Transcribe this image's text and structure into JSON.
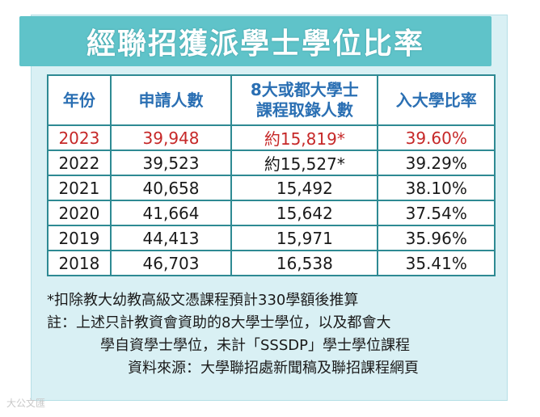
{
  "title": "經聯招獲派學士學位比率",
  "table": {
    "headers": [
      "年份",
      "申請人數",
      "8大或都大學士課程取錄人數",
      "入大學比率"
    ],
    "header_line1": "8大或都大學士",
    "header_line2": "課程取錄人數",
    "rows": [
      {
        "year": "2023",
        "applicants": "39,948",
        "admitted": "約15,819*",
        "rate": "39.60%"
      },
      {
        "year": "2022",
        "applicants": "39,523",
        "admitted": "約15,527*",
        "rate": "39.29%"
      },
      {
        "year": "2021",
        "applicants": "40,658",
        "admitted": "15,492",
        "rate": "38.10%"
      },
      {
        "year": "2020",
        "applicants": "41,664",
        "admitted": "15,642",
        "rate": "37.54%"
      },
      {
        "year": "2019",
        "applicants": "44,413",
        "admitted": "15,971",
        "rate": "35.96%"
      },
      {
        "year": "2018",
        "applicants": "46,703",
        "admitted": "16,538",
        "rate": "35.41%"
      }
    ]
  },
  "notes": {
    "deduction": "*扣除教大幼教高級文憑課程預計330學額後推算",
    "remark_line1": "註：上述只計教資會資助的8大學士學位，以及都會大",
    "remark_line2": "學自資學士學位，未計「SSSDP」學士學位課程",
    "source": "資料來源：大學聯招處新聞稿及聯招課程網頁"
  },
  "watermark": "大公文匯",
  "colors": {
    "title_bg": "#5fc3c9",
    "card_bg": "#d9f0f4",
    "table_border": "#2e8a93",
    "header_text": "#2a6fb3",
    "highlight_text": "#c62828"
  }
}
